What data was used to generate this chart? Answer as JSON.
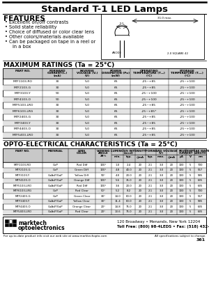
{
  "title": "Standard T-1 LED Lamps",
  "features_title": "FEATURES",
  "features": [
    "Excellent on/off contrasts",
    "Solid state reliability",
    "Choice of diffused or color clear lens",
    "Other colors/materials available",
    "Can be packaged on tape in a reel or",
    "  in a box"
  ],
  "max_ratings_title": "MAXIMUM RATINGS (Ta = 25°C)",
  "max_ratings_col_headers": [
    "PART NO.",
    "FORWARD\nCURRENT(Iₑ)\n(mA)",
    "REVERSE\nVOLTAGE (Vᵣ)\n(V)",
    "POWER\nDISSIPATION (Pᴅ)\n(mW)",
    "OPERATING\nTEMPERATURE (Tₒₚ)\n(°C)",
    "STORAGE\nTEMPERATURE (Tₛₜᵧ)\n(°C)"
  ],
  "max_ratings_data": [
    [
      "MTF1103-RO",
      "30",
      "5.0",
      "65",
      "-25~+85",
      "-25~+100"
    ],
    [
      "MTF2103-G",
      "30",
      "5.0",
      "65",
      "-25~+85",
      "-25~+100"
    ],
    [
      "MTF3103-Y",
      "50",
      "5.0",
      "65",
      "-25~+100",
      "-25~+100"
    ],
    [
      "MTF4103-O",
      "50",
      "5.0",
      "65",
      "-25~+100",
      "-25~+100"
    ],
    [
      "MTF5103-LRO",
      "30",
      "5.0",
      "65",
      "-25~+85",
      "-25~+100"
    ],
    [
      "MTF6103-LRG",
      "30",
      "5.0",
      "65",
      "-25~+85*",
      "-25~+100"
    ],
    [
      "MTF2403-G",
      "30",
      "5.0",
      "65",
      "-25~+85",
      "-25~+100"
    ],
    [
      "MTF3403-Y",
      "30",
      "5.0",
      "65",
      "-25~+85",
      "-25~+100"
    ],
    [
      "MTF4403-O",
      "30",
      "5.0",
      "65",
      "-25~+85",
      "-25~+100"
    ],
    [
      "MTF5403-LRO",
      "30",
      "5.0",
      "65",
      "-25~+85",
      "-25~+100"
    ]
  ],
  "opto_title": "OPTO-ELECTRICAL CHARACTERISTICS (Ta = 25°C)",
  "opto_data": [
    [
      "MTF1103-RO",
      "GaP",
      "Red Diff",
      "100°",
      "1.0",
      "2.4",
      "20",
      "2.1",
      "3.0",
      "20",
      "100",
      "5",
      "700"
    ],
    [
      "MTF2103-G",
      "GaP",
      "Green Diff",
      "100°",
      "4.8",
      "40.0",
      "20",
      "2.1",
      "3.0",
      "20",
      "100",
      "5",
      "567"
    ],
    [
      "MTF3103-Y",
      "GaAsP/GaP",
      "Yellow Diff",
      "90°",
      "4.0",
      "20.0",
      "20",
      "2.1",
      "3.0",
      "20",
      "100",
      "5",
      "585"
    ],
    [
      "MTF4103-O",
      "GaAsP/GaP",
      "Orange Diff",
      "100°",
      "5.6",
      "35.0",
      "20",
      "2.1",
      "3.0",
      "20",
      "100",
      "5",
      "635"
    ],
    [
      "MTF5103-LRO",
      "GaAsP/GaP",
      "Red Diff",
      "100°",
      "3.6",
      "20.0",
      "20",
      "2.1",
      "3.0",
      "20",
      "100",
      "5",
      "635"
    ],
    [
      "MTF6103-LRG",
      "GaP",
      "Red Clear",
      "50°",
      "5.2",
      "8.2",
      "20",
      "2.1",
      "3.0",
      "20",
      "100",
      "5",
      "700"
    ],
    [
      "MTF2403-G",
      "GaP",
      "Green Clear",
      "30°",
      "14.0",
      "60.0",
      "20",
      "2.1",
      "3.0",
      "20",
      "100",
      "5",
      "567"
    ],
    [
      "MTF3403-Y",
      "GaAsP/GaP",
      "Yellow Clear",
      "30°",
      "11.4",
      "60.0",
      "20",
      "2.1",
      "3.0",
      "20",
      "100",
      "5",
      "585"
    ],
    [
      "MTF4403-O",
      "GaAsP/GaP",
      "Orange Clear",
      "20°",
      "14.8",
      "75.0",
      "20",
      "2.1",
      "3.0",
      "20",
      "100",
      "5",
      "635"
    ],
    [
      "MTF5403-LRO",
      "GaAsP/GaP",
      "Red Clear",
      "20°",
      "13.6",
      "75.0",
      "20",
      "2.1",
      "3.0",
      "20",
      "100",
      "5",
      "635"
    ]
  ],
  "footer_address": "120 Broadway • Menands, New York 12204",
  "footer_tollfree": "Toll Free: (800) 98-4LEDS • Fax: (518) 432-7454",
  "footer_web": "For up-to-date product info visit our web site at www.marktechopto.com",
  "footer_rights": "All specifications subject to change.",
  "footer_page": "361"
}
